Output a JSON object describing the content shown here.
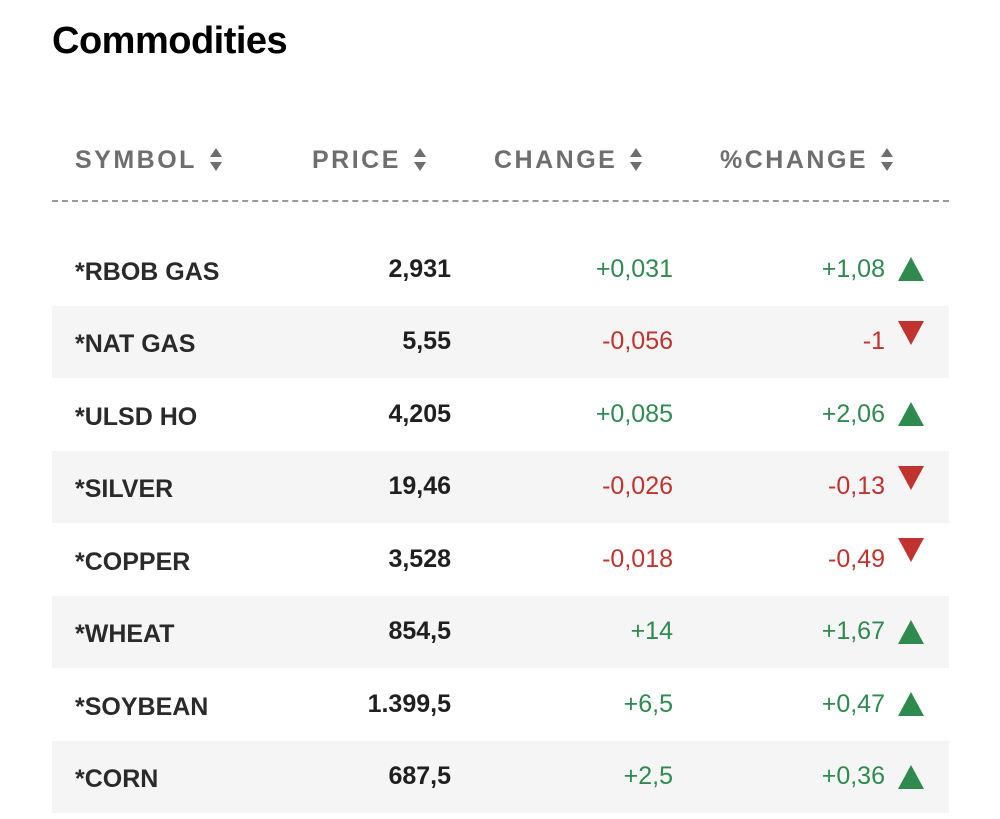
{
  "title": "Commodities",
  "columns": {
    "symbol": "SYMBOL",
    "price": "PRICE",
    "change": "CHANGE",
    "pct_change": "%CHANGE"
  },
  "colors": {
    "up": "#2e8a4f",
    "down": "#c0332e",
    "header": "#6e6e6e"
  },
  "rows": [
    {
      "symbol": "*RBOB GAS",
      "price": "2,931",
      "change": "+0,031",
      "pct_change": "+1,08",
      "direction": "up"
    },
    {
      "symbol": "*NAT GAS",
      "price": "5,55",
      "change": "-0,056",
      "pct_change": "-1",
      "direction": "down"
    },
    {
      "symbol": "*ULSD HO",
      "price": "4,205",
      "change": "+0,085",
      "pct_change": "+2,06",
      "direction": "up"
    },
    {
      "symbol": "*SILVER",
      "price": "19,46",
      "change": "-0,026",
      "pct_change": "-0,13",
      "direction": "down"
    },
    {
      "symbol": "*COPPER",
      "price": "3,528",
      "change": "-0,018",
      "pct_change": "-0,49",
      "direction": "down"
    },
    {
      "symbol": "*WHEAT",
      "price": "854,5",
      "change": "+14",
      "pct_change": "+1,67",
      "direction": "up"
    },
    {
      "symbol": "*SOYBEAN",
      "price": "1.399,5",
      "change": "+6,5",
      "pct_change": "+0,47",
      "direction": "up"
    },
    {
      "symbol": "*CORN",
      "price": "687,5",
      "change": "+2,5",
      "pct_change": "+0,36",
      "direction": "up"
    }
  ]
}
